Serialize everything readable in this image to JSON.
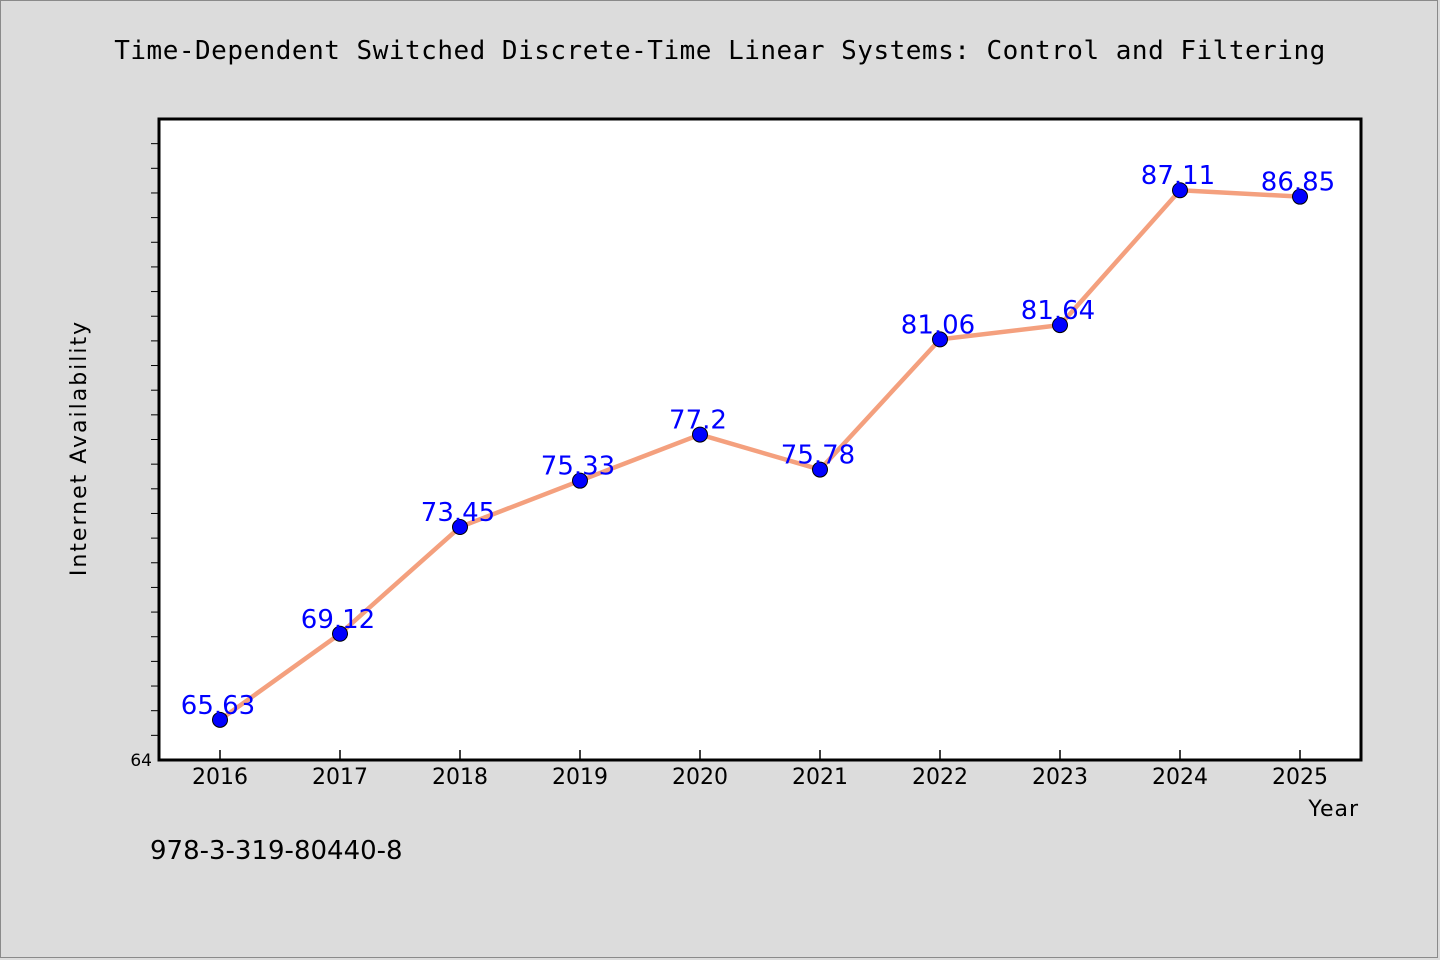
{
  "title": "Time-Dependent Switched Discrete-Time Linear Systems: Control and Filtering",
  "footnote": "978-3-319-80440-8",
  "chart_data": {
    "type": "line",
    "title": "Time-Dependent Switched Discrete-Time Linear Systems: Control and Filtering",
    "xlabel": "Year",
    "ylabel": "Internet Availability",
    "categories": [
      "2016",
      "2017",
      "2018",
      "2019",
      "2020",
      "2021",
      "2022",
      "2023",
      "2024",
      "2025"
    ],
    "series": [
      {
        "values": [
          65.63,
          69.12,
          73.45,
          75.33,
          77.2,
          75.78,
          81.06,
          81.64,
          87.11,
          86.85
        ],
        "data_labels": [
          "65.63",
          "69.12",
          "73.45",
          "75.33",
          "77.2",
          "75.78",
          "81.06",
          "81.64",
          "87.11",
          "86.85"
        ],
        "line_color": "#f4a07e",
        "marker_color": "#0000ff"
      }
    ],
    "ylim": [
      64,
      90
    ],
    "y_tick_labels": [
      "64"
    ],
    "grid": false,
    "legend": "none"
  }
}
